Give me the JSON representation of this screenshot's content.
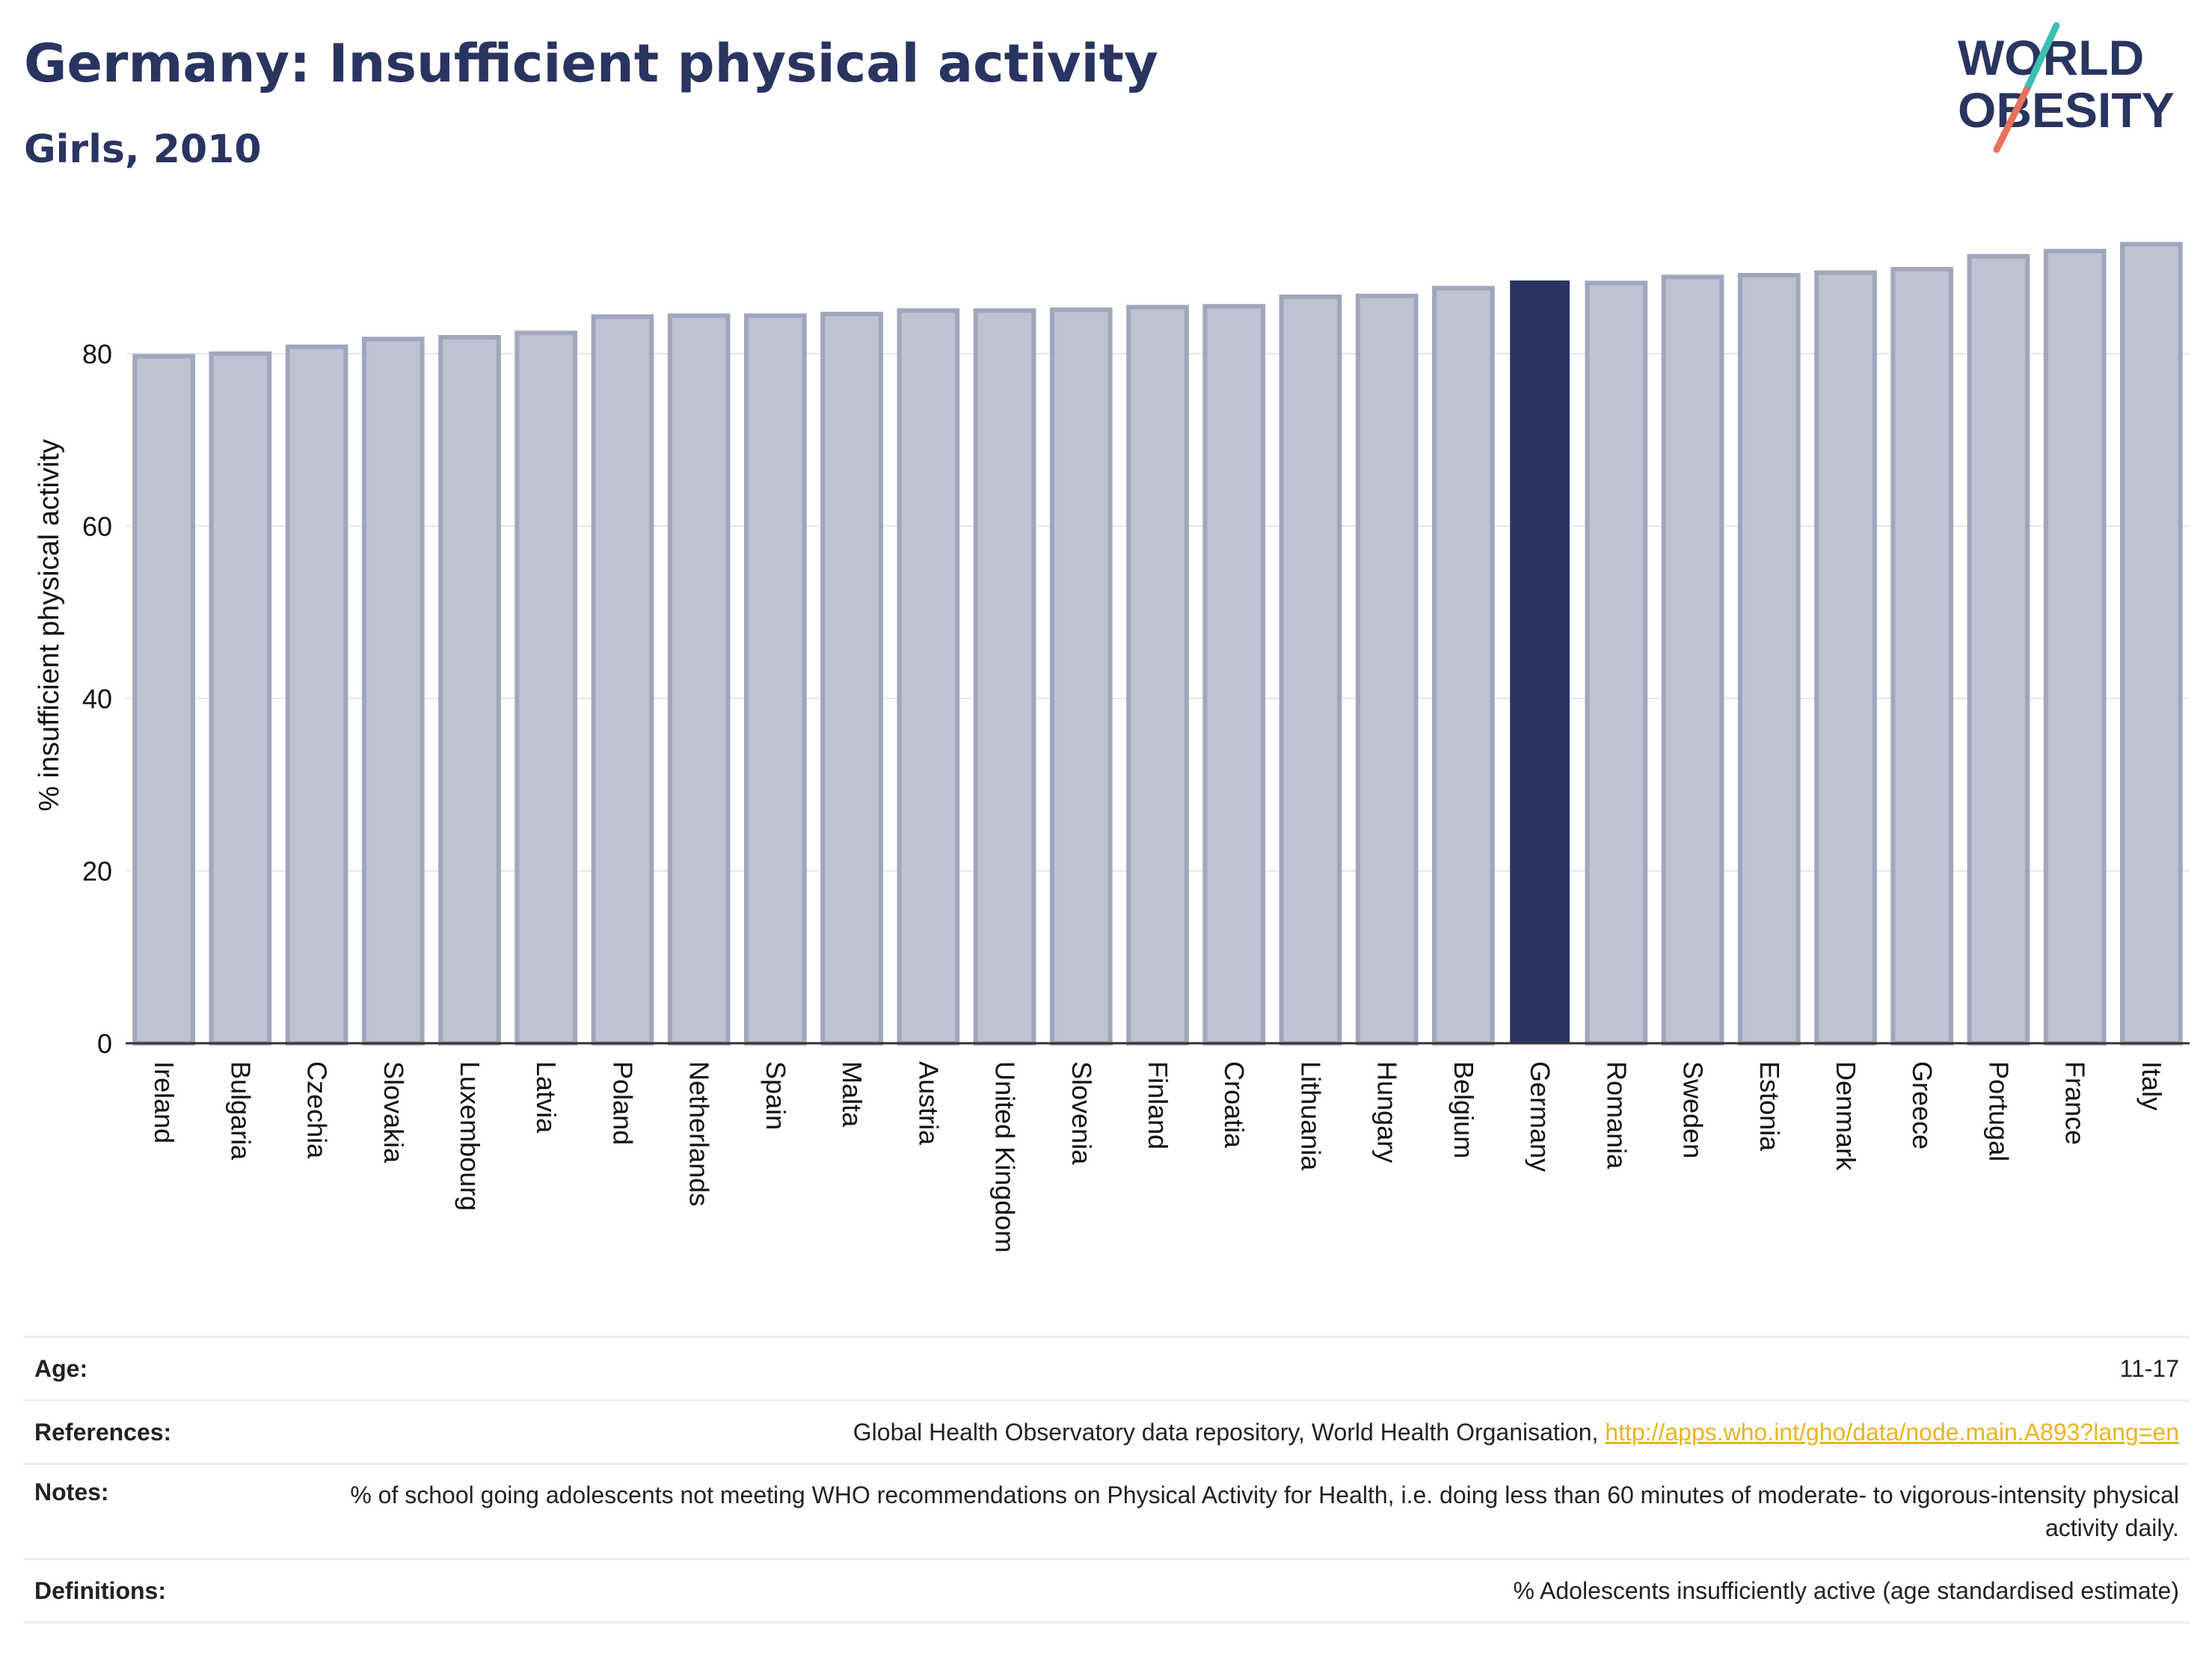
{
  "header": {
    "title": "Germany: Insufficient physical activity",
    "subtitle": "Girls, 2010"
  },
  "logo": {
    "line1": "WORLD",
    "line2": "OBESITY",
    "icon": "world-obesity-logo"
  },
  "colors": {
    "highlight": "#2a3460",
    "bar": "#bfc2d0",
    "bar_edge": "#a0a6bc",
    "grid": "#e6e6ec",
    "logo_text": "#2a3460",
    "logo_teal": "#3bbfb3",
    "logo_coral": "#e8705e",
    "link": "#e8b422"
  },
  "chart_data": {
    "type": "bar",
    "title": "Germany: Insufficient physical activity",
    "subtitle": "Girls, 2010",
    "xlabel": "",
    "ylabel": "% insufficient physical activity",
    "ylim": [
      0,
      95
    ],
    "yticks": [
      0,
      20,
      40,
      60,
      80
    ],
    "grid": true,
    "highlight": "Germany",
    "categories": [
      "Ireland",
      "Bulgaria",
      "Czechia",
      "Slovakia",
      "Luxembourg",
      "Latvia",
      "Poland",
      "Netherlands",
      "Spain",
      "Malta",
      "Austria",
      "United Kingdom",
      "Slovenia",
      "Finland",
      "Croatia",
      "Lithuania",
      "Hungary",
      "Belgium",
      "Germany",
      "Romania",
      "Sweden",
      "Estonia",
      "Denmark",
      "Greece",
      "Portugal",
      "France",
      "Italy"
    ],
    "values": [
      79.7,
      80.0,
      80.8,
      81.7,
      81.9,
      82.4,
      84.3,
      84.4,
      84.4,
      84.6,
      85.0,
      85.0,
      85.1,
      85.4,
      85.5,
      86.6,
      86.7,
      87.6,
      88.4,
      88.2,
      88.9,
      89.1,
      89.4,
      89.8,
      91.3,
      91.9,
      92.7
    ]
  },
  "table": {
    "rows": [
      {
        "label": "Age:",
        "value": "11-17"
      },
      {
        "label": "References:",
        "value": "Global Health Observatory data repository, World Health Organisation,",
        "link": "http://apps.who.int/gho/data/node.main.A893?lang=en"
      },
      {
        "label": "Notes:",
        "value": "% of school going adolescents not meeting WHO recommendations on Physical Activity for Health, i.e. doing less than 60 minutes of moderate- to vigorous-intensity physical activity daily."
      },
      {
        "label": "Definitions:",
        "value": "% Adolescents insufficiently active (age standardised estimate)"
      }
    ]
  }
}
